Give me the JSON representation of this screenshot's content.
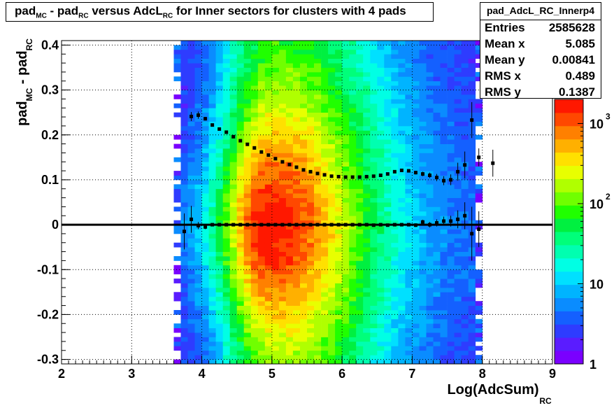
{
  "chart_data": {
    "type": "heatmap",
    "title": "pad_{MC} - pad_{RC} versus AdcL_{RC} for Inner sectors for clusters with 4 pads",
    "title_parts": [
      "pad",
      "MC",
      " - pad",
      "RC",
      " versus AdcL",
      "RC",
      " for Inner sectors for clusters with 4 pads"
    ],
    "xlabel": "Log(AdcSum)",
    "xlabel_sub": "RC",
    "ylabel": "pad",
    "ylabel_sub1": "MC",
    "ylabel_mid": " - pad",
    "ylabel_sub2": "RC",
    "xlim": [
      2,
      9
    ],
    "ylim": [
      -0.31,
      0.41
    ],
    "x_ticks": [
      "2",
      "3",
      "4",
      "5",
      "6",
      "7",
      "8",
      "9"
    ],
    "y_ticks": [
      "-0.3",
      "-0.2",
      "-0.1",
      "0",
      "0.1",
      "0.2",
      "0.3",
      "0.4"
    ],
    "grid": true,
    "z_scale": "log",
    "z_ticks": [
      {
        "label": "1",
        "exp": ""
      },
      {
        "label": "10",
        "exp": ""
      },
      {
        "label": "10",
        "exp": "2"
      },
      {
        "label": "10",
        "exp": "3"
      }
    ],
    "z_range": [
      1,
      2000
    ],
    "density_model": {
      "peak_x": 4.95,
      "peak_y": 0.0,
      "x_range": [
        3.6,
        8.0
      ]
    },
    "series": [
      {
        "name": "profile mean",
        "x": [
          3.75,
          3.85,
          3.95,
          4.05,
          4.15,
          4.25,
          4.35,
          4.45,
          4.55,
          4.65,
          4.75,
          4.85,
          4.95,
          5.05,
          5.15,
          5.25,
          5.35,
          5.45,
          5.55,
          5.65,
          5.75,
          5.85,
          5.95,
          6.05,
          6.15,
          6.25,
          6.35,
          6.45,
          6.55,
          6.65,
          6.75,
          6.85,
          6.95,
          7.05,
          7.15,
          7.25,
          7.35,
          7.45,
          7.55,
          7.65,
          7.75,
          7.85,
          7.95,
          8.15
        ],
        "y": [
          -0.015,
          0.012,
          -0.002,
          -0.005,
          0.0,
          0.0,
          0.0,
          0.0,
          0.0,
          0.0,
          0.0,
          0.0,
          0.0,
          0.0,
          0.0,
          0.0,
          0.0,
          0.0,
          0.0,
          0.0,
          0.0,
          0.0,
          0.0,
          0.0,
          0.0,
          0.0,
          0.0,
          -0.001,
          0.0,
          -0.001,
          0.0,
          0.0,
          0.0,
          -0.001,
          0.006,
          0.0,
          0.004,
          0.008,
          0.008,
          0.012,
          0.02,
          -0.02,
          -0.01,
          null
        ],
        "err": [
          0.04,
          0.03,
          0.008,
          0.005,
          0.003,
          0.002,
          0.001,
          0.001,
          0.001,
          0.001,
          0.001,
          0.001,
          0.001,
          0.001,
          0.001,
          0.001,
          0.001,
          0.001,
          0.001,
          0.001,
          0.001,
          0.001,
          0.001,
          0.001,
          0.001,
          0.001,
          0.001,
          0.001,
          0.002,
          0.002,
          0.002,
          0.003,
          0.003,
          0.004,
          0.005,
          0.006,
          0.008,
          0.01,
          0.012,
          0.02,
          0.03,
          0.06,
          0.04,
          0.0
        ]
      },
      {
        "name": "profile rms",
        "x": [
          3.85,
          3.95,
          4.05,
          4.15,
          4.25,
          4.35,
          4.45,
          4.55,
          4.65,
          4.75,
          4.85,
          4.95,
          5.05,
          5.15,
          5.25,
          5.35,
          5.45,
          5.55,
          5.65,
          5.75,
          5.85,
          5.95,
          6.05,
          6.15,
          6.25,
          6.35,
          6.45,
          6.55,
          6.65,
          6.75,
          6.85,
          6.95,
          7.05,
          7.15,
          7.25,
          7.35,
          7.45,
          7.55,
          7.65,
          7.75,
          7.85,
          7.95,
          8.15
        ],
        "y": [
          0.241,
          0.244,
          0.236,
          0.222,
          0.213,
          0.206,
          0.196,
          0.187,
          0.179,
          0.171,
          0.162,
          0.155,
          0.147,
          0.14,
          0.134,
          0.128,
          0.122,
          0.118,
          0.114,
          0.111,
          0.108,
          0.107,
          0.106,
          0.106,
          0.106,
          0.107,
          0.108,
          0.11,
          0.113,
          0.118,
          0.121,
          0.12,
          0.116,
          0.113,
          0.11,
          0.105,
          0.098,
          0.1,
          0.118,
          0.133,
          0.233,
          0.15,
          0.137
        ],
        "err": [
          0.01,
          0.008,
          0.004,
          0.002,
          0.002,
          0.001,
          0.001,
          0.001,
          0.001,
          0.001,
          0.001,
          0.001,
          0.001,
          0.001,
          0.001,
          0.001,
          0.001,
          0.001,
          0.001,
          0.001,
          0.001,
          0.001,
          0.001,
          0.001,
          0.001,
          0.001,
          0.001,
          0.002,
          0.002,
          0.002,
          0.003,
          0.003,
          0.004,
          0.005,
          0.006,
          0.008,
          0.01,
          0.012,
          0.02,
          0.03,
          0.04,
          0.02,
          0.03
        ]
      }
    ],
    "reference_line_y": 0
  },
  "stats": {
    "name": "pad_AdcL_RC_Innerp4",
    "rows": [
      {
        "label": "Entries",
        "value": "2585628"
      },
      {
        "label": "Mean x",
        "value": "5.085"
      },
      {
        "label": "Mean y",
        "value": "0.00841"
      },
      {
        "label": "RMS x",
        "value": "0.489"
      },
      {
        "label": "RMS y",
        "value": "0.1387"
      }
    ]
  },
  "colors": {
    "palette": [
      "#7a00ff",
      "#5a1cff",
      "#2e3cff",
      "#1460ff",
      "#0a8cff",
      "#00b4ff",
      "#00e0ff",
      "#00ffe4",
      "#00ffb0",
      "#00ff7a",
      "#00f040",
      "#20ff00",
      "#70ff00",
      "#b0ff00",
      "#e8ff00",
      "#ffe000",
      "#ffb000",
      "#ff8000",
      "#ff4800",
      "#ff1800"
    ],
    "marker": "#000000"
  }
}
